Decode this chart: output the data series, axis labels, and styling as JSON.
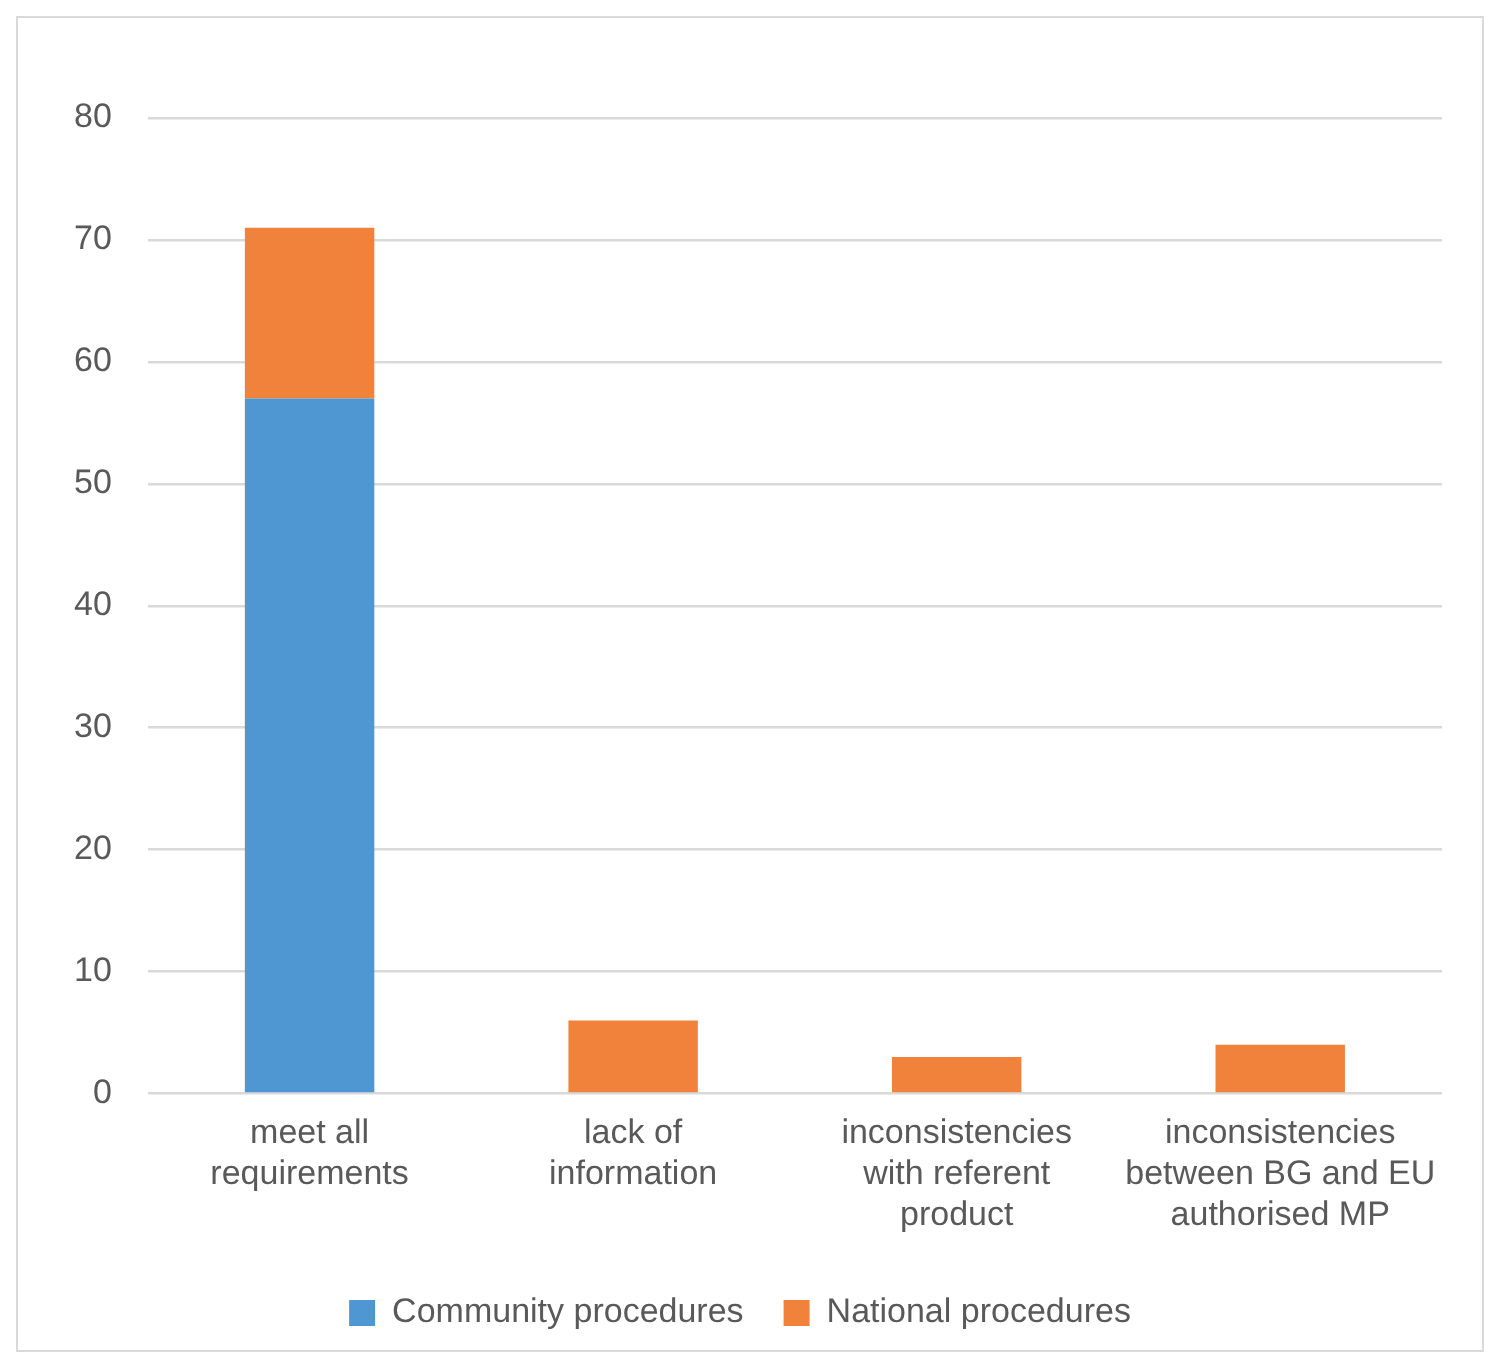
{
  "chart_data": {
    "type": "bar",
    "stacked": true,
    "categories": [
      "meet all requirements",
      "lack of information",
      "inconsistencies with referent product",
      "inconsistencies between BG and EU authorised MP"
    ],
    "series": [
      {
        "name": "Community procedures",
        "color": "#4f97d2",
        "values": [
          57,
          0,
          0,
          0
        ]
      },
      {
        "name": "National procedures",
        "color": "#f0823c",
        "values": [
          14,
          6,
          3,
          4
        ]
      }
    ],
    "ylim": [
      0,
      80
    ],
    "yticks": [
      0,
      10,
      20,
      30,
      40,
      50,
      60,
      70,
      80
    ],
    "grid": "y",
    "legend": "bottom"
  }
}
